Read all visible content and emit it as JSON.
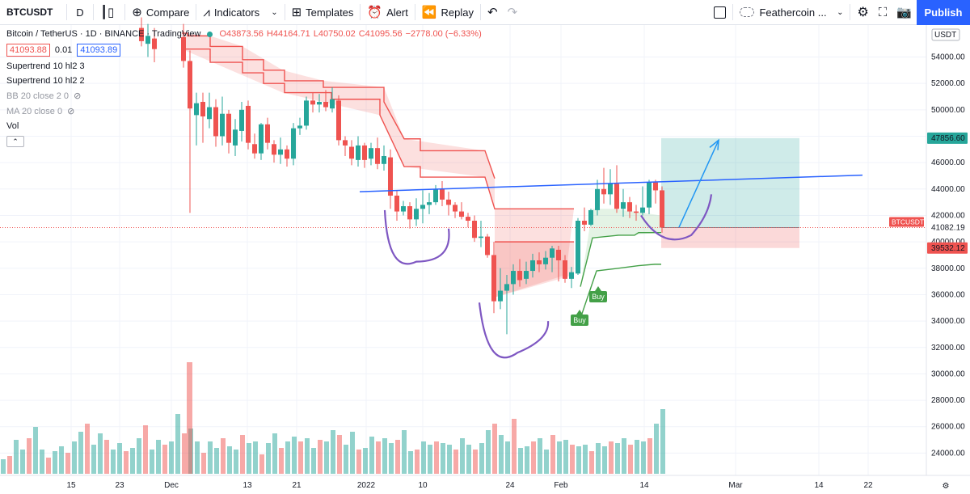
{
  "toolbar": {
    "symbol": "BTCUSDT",
    "interval": "D",
    "compare": "Compare",
    "indicators": "Indicators",
    "templates": "Templates",
    "alert": "Alert",
    "replay": "Replay",
    "layout_name": "Feathercoin ...",
    "publish": "Publish"
  },
  "legend": {
    "title": "Bitcoin / TetherUS · 1D · BINANCE · TradingView",
    "open": "O43873.56",
    "high": "H44164.71",
    "low": "L40750.02",
    "close": "C41095.56",
    "change": "−2778.00 (−6.33%)",
    "bid": "41093.88",
    "spread": "0.01",
    "ask": "41093.89",
    "indicators": [
      {
        "label": "Supertrend 10 hl2 3",
        "hidden": false
      },
      {
        "label": "Supertrend 10 hl2 2",
        "hidden": false
      },
      {
        "label": "BB 20 close 2 0",
        "hidden": true
      },
      {
        "label": "MA 20 close 0",
        "hidden": true
      },
      {
        "label": "Vol",
        "hidden": false
      }
    ]
  },
  "price_axis": {
    "currency": "USDT",
    "ticks": [
      "54000.00",
      "52000.00",
      "50000.00",
      "48000.00",
      "46000.00",
      "44000.00",
      "42000.00",
      "40000.00",
      "38000.00",
      "36000.00",
      "34000.00",
      "32000.00",
      "30000.00",
      "28000.00",
      "26000.00",
      "24000.00"
    ],
    "labels": {
      "target": "47856.60",
      "symbol": "BTCUSDT",
      "last": "41082.19",
      "stop": "39532.12"
    }
  },
  "time_axis": {
    "ticks": [
      "15",
      "23",
      "Dec",
      "13",
      "21",
      "2022",
      "10",
      "24",
      "Feb",
      "14",
      "Mar",
      "14",
      "22"
    ]
  },
  "annotations": {
    "buy1": "Buy",
    "buy2": "Buy"
  },
  "colors": {
    "up": "#26a69a",
    "down": "#ef5350",
    "accent": "#2962ff",
    "supertrend_red_fill": "#fde0e0",
    "supertrend_green_fill": "#e1f4e1",
    "curve": "#7e57c2"
  }
}
